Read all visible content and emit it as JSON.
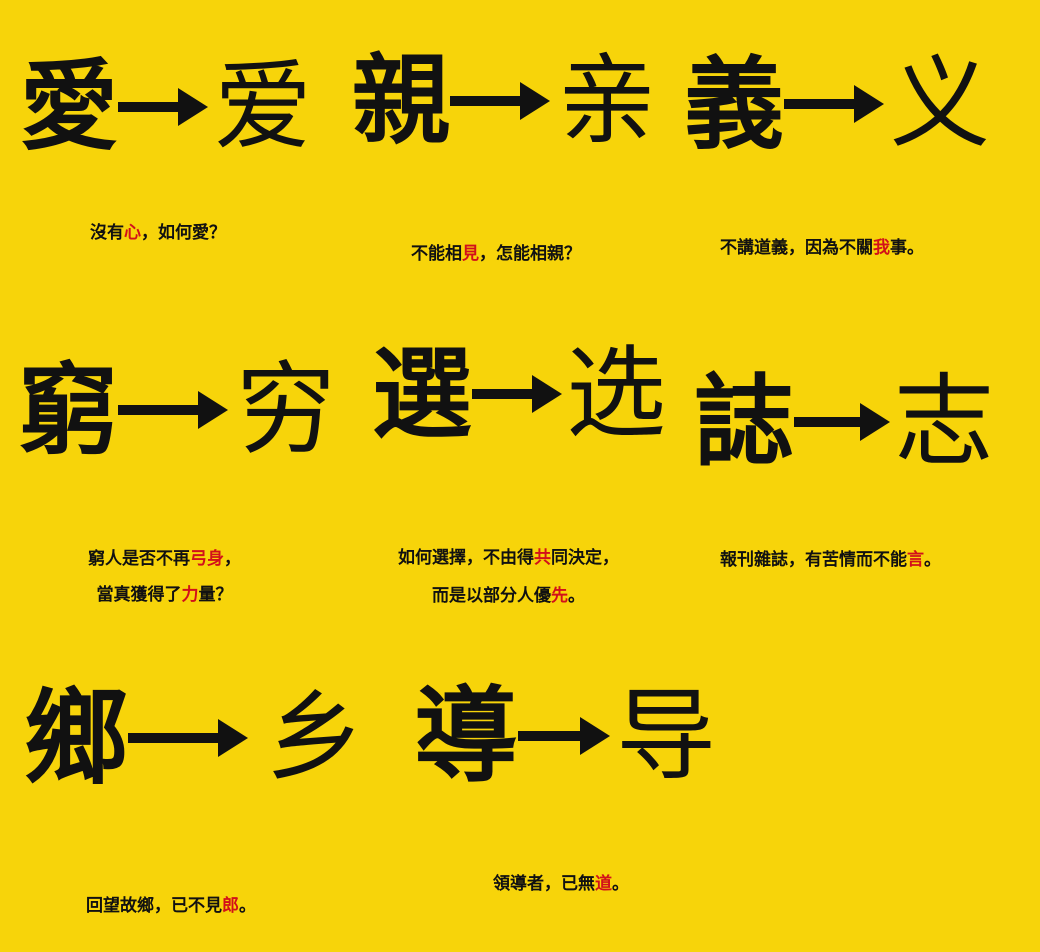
{
  "colors": {
    "background": "#f7d40a",
    "text": "#111111",
    "highlight": "#d2101a"
  },
  "pairs": [
    {
      "traditional": "愛",
      "simplified": "爱",
      "caption_lines": [
        [
          {
            "t": "沒有"
          },
          {
            "t": "心",
            "hl": true
          },
          {
            "t": "，如何愛？"
          }
        ]
      ]
    },
    {
      "traditional": "親",
      "simplified": "亲",
      "caption_lines": [
        [
          {
            "t": "不能相"
          },
          {
            "t": "見",
            "hl": true
          },
          {
            "t": "，怎能相親？"
          }
        ]
      ]
    },
    {
      "traditional": "義",
      "simplified": "义",
      "caption_lines": [
        [
          {
            "t": "不講道義，因為不關"
          },
          {
            "t": "我",
            "hl": true
          },
          {
            "t": "事。"
          }
        ]
      ]
    },
    {
      "traditional": "窮",
      "simplified": "穷",
      "caption_lines": [
        [
          {
            "t": "窮人是否不再"
          },
          {
            "t": "弓身",
            "hl": true
          },
          {
            "t": "，"
          }
        ],
        [
          {
            "t": "當真獲得了"
          },
          {
            "t": "力",
            "hl": true
          },
          {
            "t": "量？"
          }
        ]
      ]
    },
    {
      "traditional": "選",
      "simplified": "选",
      "caption_lines": [
        [
          {
            "t": "如何選擇，不由得"
          },
          {
            "t": "共",
            "hl": true
          },
          {
            "t": "同決定，"
          }
        ],
        [
          {
            "t": "而是以部分人優"
          },
          {
            "t": "先",
            "hl": true
          },
          {
            "t": "。"
          }
        ]
      ]
    },
    {
      "traditional": "誌",
      "simplified": "志",
      "caption_lines": [
        [
          {
            "t": "報刊雜誌，有苦情而不能"
          },
          {
            "t": "言",
            "hl": true
          },
          {
            "t": "。"
          }
        ]
      ]
    },
    {
      "traditional": "鄉",
      "simplified": "乡",
      "caption_lines": [
        [
          {
            "t": "回望故鄉，已不見"
          },
          {
            "t": "郎",
            "hl": true
          },
          {
            "t": "。"
          }
        ]
      ]
    },
    {
      "traditional": "導",
      "simplified": "导",
      "caption_lines": [
        [
          {
            "t": "領導者，已無"
          },
          {
            "t": "道",
            "hl": true
          },
          {
            "t": "。"
          }
        ]
      ]
    }
  ]
}
